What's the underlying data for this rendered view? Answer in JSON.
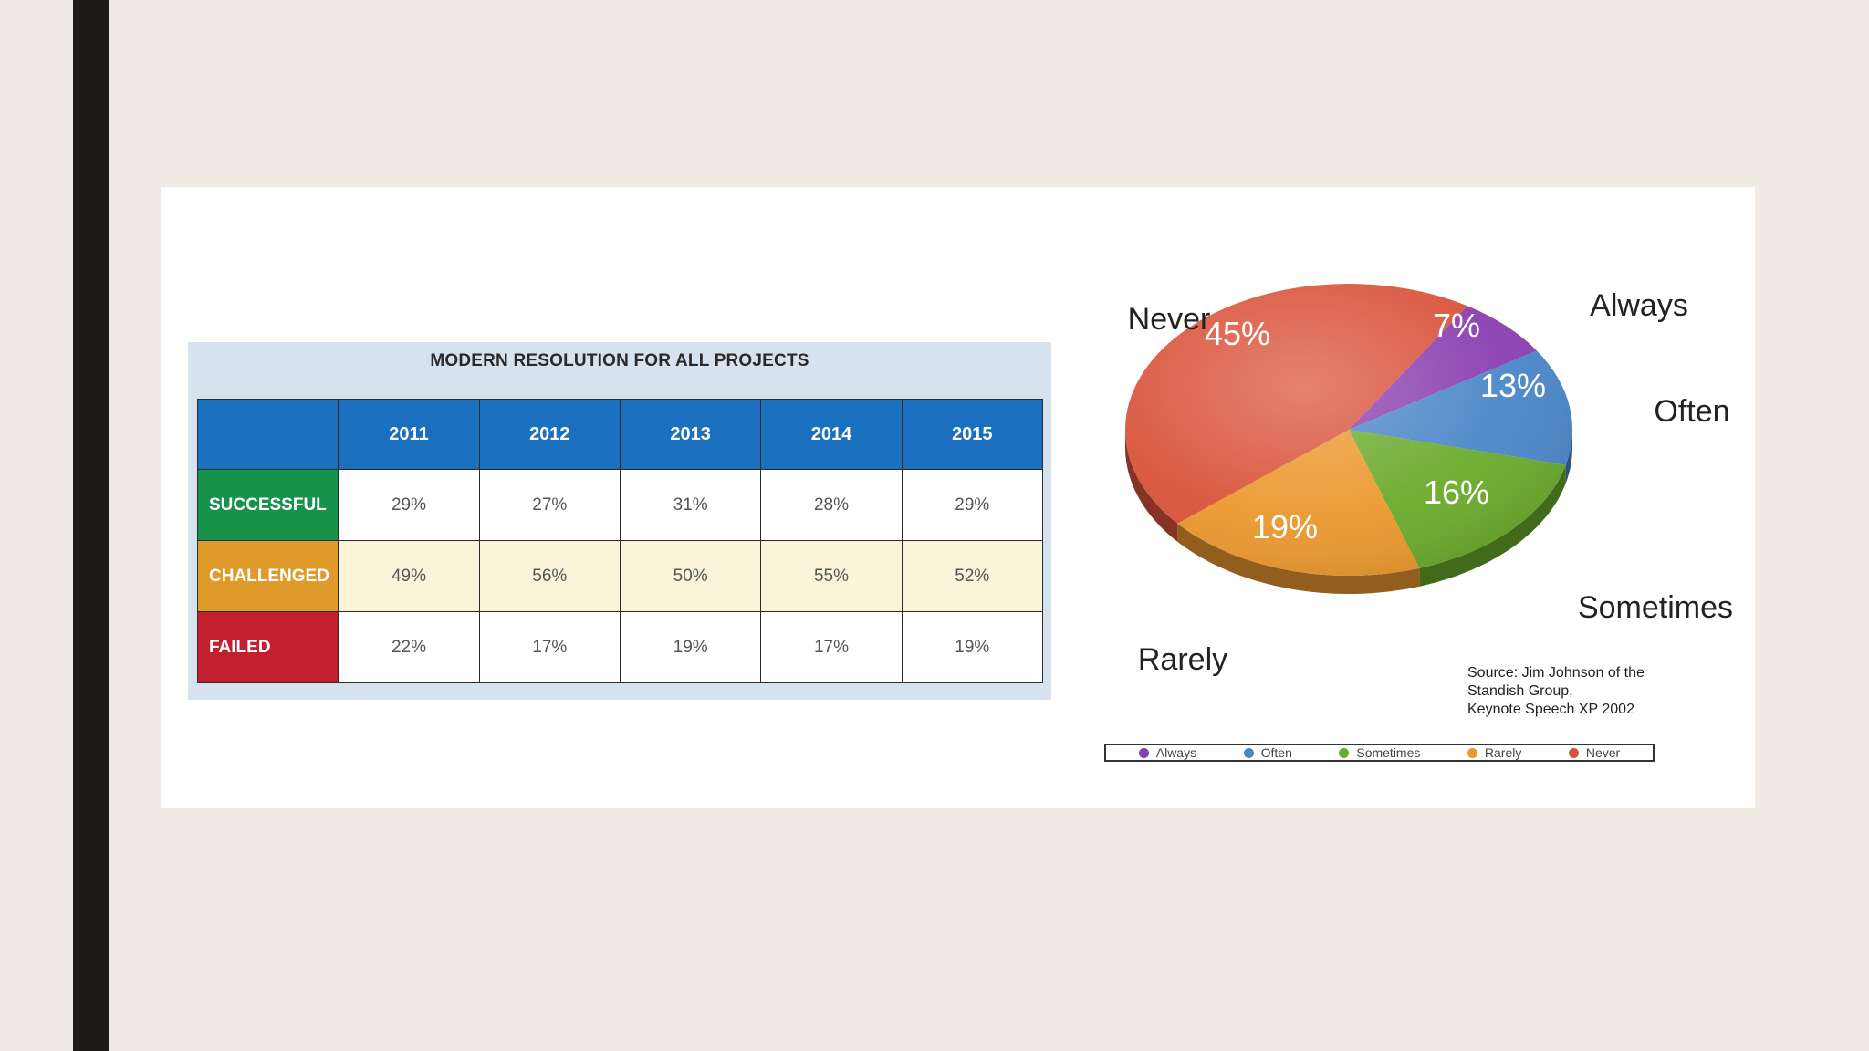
{
  "chart_data": [
    {
      "type": "table",
      "title": "MODERN RESOLUTION FOR ALL PROJECTS",
      "columns": [
        "2011",
        "2012",
        "2013",
        "2014",
        "2015"
      ],
      "rows": [
        {
          "label": "SUCCESSFUL",
          "values": [
            "29%",
            "27%",
            "31%",
            "28%",
            "29%"
          ]
        },
        {
          "label": "CHALLENGED",
          "values": [
            "49%",
            "56%",
            "50%",
            "55%",
            "52%"
          ]
        },
        {
          "label": "FAILED",
          "values": [
            "22%",
            "17%",
            "19%",
            "17%",
            "19%"
          ]
        }
      ],
      "row_colors": {
        "SUCCESSFUL": "#16924a",
        "CHALLENGED": "#e09a2a",
        "FAILED": "#c31f2c"
      },
      "header_color": "#1a6fbf"
    },
    {
      "type": "pie",
      "slices": [
        {
          "name": "Never",
          "value": 45,
          "label": "45%",
          "color": "#d9533a"
        },
        {
          "name": "Always",
          "value": 7,
          "label": "7%",
          "color": "#8a3fb0"
        },
        {
          "name": "Often",
          "value": 13,
          "label": "13%",
          "color": "#4a86c8"
        },
        {
          "name": "Sometimes",
          "value": 16,
          "label": "16%",
          "color": "#6aab2c"
        },
        {
          "name": "Rarely",
          "value": 19,
          "label": "19%",
          "color": "#eb982e"
        }
      ],
      "source_lines": [
        "Source: Jim Johnson of the",
        "Standish Group,",
        "Keynote Speech XP 2002"
      ],
      "legend": [
        {
          "label": "Always",
          "color": "#8a3fb0"
        },
        {
          "label": "Often",
          "color": "#4a86c8"
        },
        {
          "label": "Sometimes",
          "color": "#6aab2c"
        },
        {
          "label": "Rarely",
          "color": "#eb982e"
        },
        {
          "label": "Never",
          "color": "#d9533a"
        }
      ],
      "legend_position": "bottom"
    }
  ]
}
